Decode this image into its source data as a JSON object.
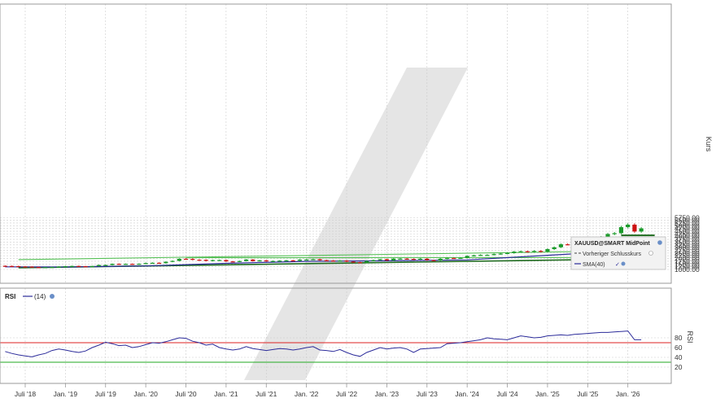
{
  "instrument": "XAUUSD@SMART MidPoint",
  "price_panel": {
    "ylabel": "Kurs",
    "yticks": [
      1000,
      1250,
      1500,
      1750,
      2000,
      2250,
      2500,
      2750,
      3000,
      3250,
      3500,
      3750,
      4000,
      4250,
      4500,
      4750,
      5000,
      5250,
      5500,
      5750
    ]
  },
  "legend": {
    "instrument_label": "XAUUSD@SMART MidPoint",
    "prev_close_label": "Vorheriger Schlusskurs",
    "sma_label": "SMA(40)"
  },
  "rsi_panel": {
    "title": "RSI",
    "period_label": "(14)",
    "ylabel": "RSI",
    "yticks": [
      20,
      40,
      60,
      80
    ],
    "upper_level": 70,
    "lower_level": 30
  },
  "x_axis_labels": [
    "Juli '18",
    "Jan. '19",
    "Juli '19",
    "Jan. '20",
    "Juli '20",
    "Jan. '21",
    "Juli '21",
    "Jan. '22",
    "Juli '22",
    "Jan. '23",
    "Juli '23",
    "Jan. '24",
    "Juli '24",
    "Jan. '25",
    "Juli '25",
    "Jan. '26"
  ],
  "colors": {
    "up": "#1a9a2a",
    "down": "#cc1111",
    "sma": "#2b2b9a",
    "trend_dark": "#1f6b1f",
    "trend_light": "#55c055",
    "rsi_upper": "#dd2222",
    "rsi_lower": "#22aa22",
    "rsi_line": "#2b2b9a",
    "grid": "#cccccc"
  },
  "chart_data": [
    {
      "type": "candlestick",
      "title": "XAUUSD@SMART MidPoint",
      "ylabel": "Kurs",
      "ylim": [
        700,
        5850
      ],
      "grid": true,
      "legend_position": "right",
      "x_start": "2018-04",
      "interval": "month",
      "close": [
        1320,
        1305,
        1265,
        1255,
        1215,
        1195,
        1205,
        1220,
        1260,
        1290,
        1320,
        1295,
        1285,
        1305,
        1405,
        1410,
        1515,
        1470,
        1510,
        1460,
        1520,
        1585,
        1610,
        1575,
        1700,
        1780,
        1975,
        1965,
        1885,
        1880,
        1780,
        1855,
        1860,
        1735,
        1710,
        1770,
        1905,
        1760,
        1830,
        1745,
        1775,
        1805,
        1830,
        1795,
        1900,
        1905,
        1935,
        1840,
        1810,
        1765,
        1810,
        1715,
        1660,
        1635,
        1770,
        1855,
        1935,
        1825,
        1985,
        1990,
        1960,
        1930,
        1985,
        1850,
        1820,
        1985,
        2045,
        2030,
        2055,
        2235,
        2290,
        2330,
        2330,
        2410,
        2450,
        2500,
        2630,
        2660,
        2610,
        2690,
        2635,
        2860,
        3030,
        3300,
        3290,
        3310,
        3300,
        3450,
        3800,
        3960,
        4240,
        4320,
        4870,
        5100,
        4470,
        4760
      ],
      "sma": {
        "name": "SMA(40)",
        "x": [
          "2018-04",
          "2019-01",
          "2020-01",
          "2021-01",
          "2022-01",
          "2023-01",
          "2024-01",
          "2025-01",
          "2025-07",
          "2026-01",
          "2026-03"
        ],
        "values": [
          1235,
          1225,
          1320,
          1560,
          1740,
          1790,
          1870,
          2300,
          2500,
          2750,
          2850
        ]
      },
      "trend_lines": [
        {
          "x": [
            "2018-06",
            "2026-05"
          ],
          "values": [
            1150,
            1990
          ]
        },
        {
          "x": [
            "2018-06",
            "2026-05"
          ],
          "values": [
            1900,
            2730
          ]
        },
        {
          "x": [
            "2020-07",
            "2026-05"
          ],
          "values": [
            2075,
            2090
          ]
        },
        {
          "x": [
            "2025-12",
            "2026-05"
          ],
          "values": [
            4150,
            4150
          ]
        },
        {
          "x": [
            "2025-12",
            "2026-05"
          ],
          "values": [
            4090,
            4090
          ]
        }
      ]
    },
    {
      "type": "line",
      "title": "RSI",
      "ylabel": "RSI",
      "ylim": [
        10,
        100
      ],
      "hlines": [
        70,
        30
      ],
      "series": [
        {
          "name": "(14)",
          "values": [
            52,
            48,
            45,
            43,
            41,
            45,
            48,
            54,
            57,
            55,
            52,
            50,
            53,
            60,
            65,
            71,
            68,
            64,
            65,
            60,
            62,
            66,
            70,
            69,
            72,
            76,
            80,
            79,
            73,
            70,
            65,
            67,
            60,
            57,
            55,
            57,
            62,
            58,
            56,
            54,
            56,
            58,
            57,
            55,
            57,
            60,
            62,
            55,
            54,
            52,
            56,
            50,
            45,
            42,
            50,
            55,
            60,
            57,
            59,
            60,
            57,
            50,
            57,
            58,
            59,
            60,
            68,
            69,
            70,
            72,
            74,
            76,
            80,
            78,
            77,
            76,
            80,
            84,
            82,
            80,
            81,
            84,
            85,
            86,
            85,
            87,
            88,
            89,
            90,
            91,
            91,
            92,
            93,
            94,
            76,
            76
          ]
        }
      ]
    }
  ]
}
